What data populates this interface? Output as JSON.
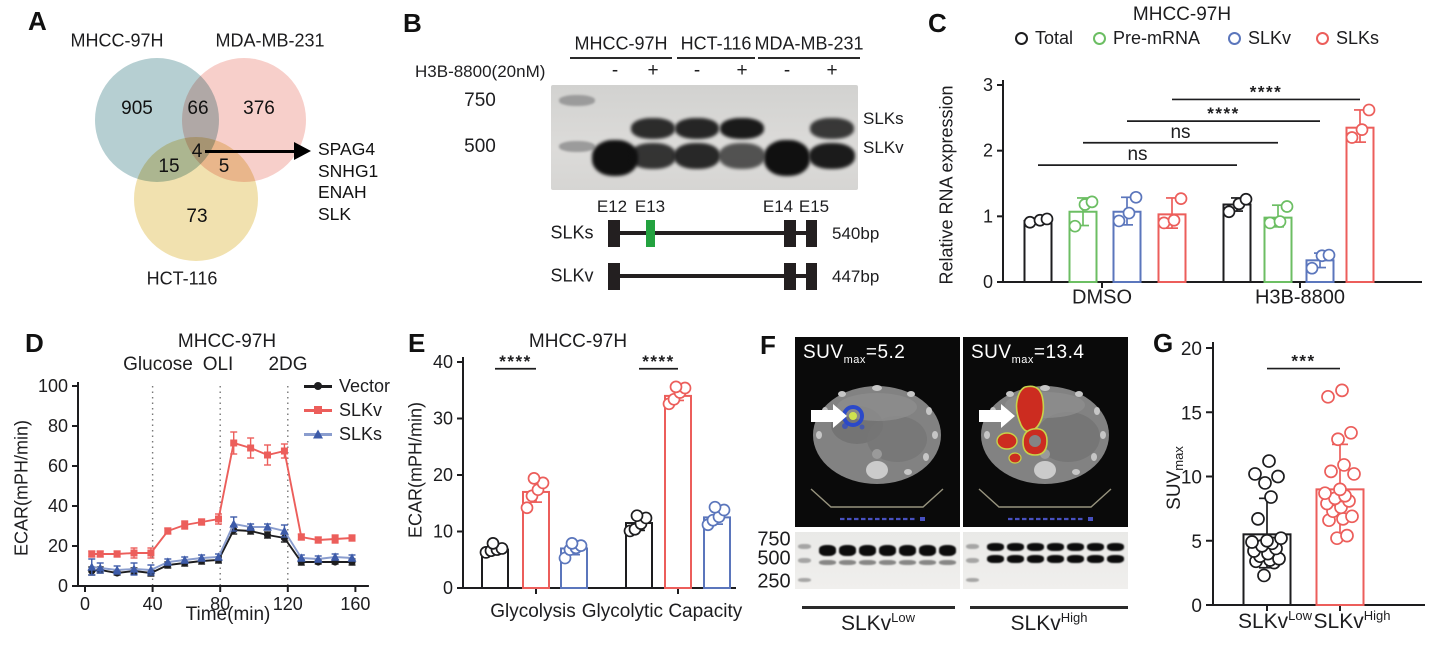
{
  "panels": {
    "A": "A",
    "B": "B",
    "C": "C",
    "D": "D",
    "E": "E",
    "F": "F",
    "G": "G"
  },
  "colors": {
    "black": "#1d1d1f",
    "red": "#EC5E5B",
    "green": "#6CBE63",
    "blue": "#5B76BC",
    "blue_line": "#8A9DCE",
    "blue_marker": "#3D5BA9",
    "venn_teal": "#AECACD",
    "venn_pink": "#F7CAC4",
    "venn_yellow": "#F0DEA6",
    "exon_green": "#23A23F"
  },
  "panelA": {
    "set_labels": [
      "MHCC-97H",
      "MDA-MB-231",
      "HCT-116"
    ],
    "regions": {
      "a_only": "905",
      "ab": "66",
      "b_only": "376",
      "ac": "15",
      "abc": "4",
      "bc": "5",
      "c_only": "73"
    },
    "genes": [
      "SPAG4",
      "SNHG1",
      "ENAH",
      "SLK"
    ]
  },
  "panelB": {
    "cell_lines": [
      "MHCC-97H",
      "HCT-116",
      "MDA-MB-231"
    ],
    "treatment": "H3B-8800(20nM)",
    "ladder": [
      "750",
      "500"
    ],
    "lanes": [
      {
        "sign": "-",
        "slks": 0,
        "slkv": 1
      },
      {
        "sign": "+",
        "slks": 0.85,
        "slkv": 0.7
      },
      {
        "sign": "-",
        "slks": 0.9,
        "slkv": 0.8
      },
      {
        "sign": "+",
        "slks": 1,
        "slkv": 0.45
      },
      {
        "sign": "-",
        "slks": 0,
        "slkv": 1
      },
      {
        "sign": "+",
        "slks": 0.75,
        "slkv": 0.9
      }
    ],
    "band_labels": [
      "SLKs",
      "SLKv"
    ],
    "exon_labels": [
      "E12",
      "E13",
      "E14",
      "E15"
    ],
    "isoforms": [
      {
        "name": "SLKs",
        "size": "540bp",
        "has_e13": true
      },
      {
        "name": "SLKv",
        "size": "447bp",
        "has_e13": false
      }
    ]
  },
  "panelF": {
    "scans": [
      {
        "suv_base": "SUV",
        "suv_sub": "max",
        "suv_eq": "=5.2",
        "hotspot": "small-blue"
      },
      {
        "suv_base": "SUV",
        "suv_sub": "max",
        "suv_eq": "=13.4",
        "hotspot": "large-red"
      }
    ],
    "ladder": [
      "750",
      "500",
      "250"
    ],
    "lanes_per_gel": 7,
    "groups": [
      {
        "base": "SLKv",
        "sup": "Low"
      },
      {
        "base": "SLKv",
        "sup": "High"
      }
    ]
  },
  "chart_data": [
    {
      "id": "C",
      "type": "bar",
      "title": "MHCC-97H",
      "ylabel": "Relative RNA expression",
      "ylim": [
        0,
        3
      ],
      "yticks": [
        0,
        1,
        2,
        3
      ],
      "groups": [
        "DMSO",
        "H3B-8800"
      ],
      "series": [
        {
          "name": "Total",
          "color": "#1d1d1f",
          "values": [
            0.93,
            1.18
          ],
          "errors": [
            [
              0.9,
              0.97
            ],
            [
              1.08,
              1.28
            ]
          ],
          "points": [
            [
              0.91,
              0.94,
              0.96
            ],
            [
              1.07,
              1.19,
              1.26
            ]
          ]
        },
        {
          "name": "Pre-mRNA",
          "color": "#6CBE63",
          "values": [
            1.07,
            0.98
          ],
          "errors": [
            [
              0.86,
              1.28
            ],
            [
              0.84,
              1.17
            ]
          ],
          "points": [
            [
              0.85,
              1.18,
              1.22
            ],
            [
              0.9,
              0.92,
              1.15
            ]
          ]
        },
        {
          "name": "SLKv",
          "color": "#5B76BC",
          "values": [
            1.07,
            0.33
          ],
          "errors": [
            [
              0.87,
              1.29
            ],
            [
              0.22,
              0.44
            ]
          ],
          "points": [
            [
              0.93,
              1.05,
              1.29
            ],
            [
              0.21,
              0.4,
              0.41
            ]
          ]
        },
        {
          "name": "SLKs",
          "color": "#EC5E5B",
          "values": [
            1.03,
            2.35
          ],
          "errors": [
            [
              0.82,
              1.28
            ],
            [
              2.13,
              2.62
            ]
          ],
          "points": [
            [
              0.9,
              0.94,
              1.27
            ],
            [
              2.2,
              2.32,
              2.62
            ]
          ]
        }
      ],
      "significance": [
        {
          "label": "ns",
          "y": 1.78,
          "bars": [
            [
              0,
              0
            ],
            [
              1,
              0
            ]
          ]
        },
        {
          "label": "ns",
          "y": 2.12,
          "bars": [
            [
              0,
              1
            ],
            [
              1,
              1
            ]
          ]
        },
        {
          "label": "****",
          "y": 2.45,
          "bars": [
            [
              0,
              2
            ],
            [
              1,
              2
            ]
          ]
        },
        {
          "label": "****",
          "y": 2.78,
          "bars": [
            [
              0,
              3
            ],
            [
              1,
              3
            ]
          ]
        }
      ]
    },
    {
      "id": "D",
      "type": "line",
      "title": "MHCC-97H",
      "xlabel": "Time(min)",
      "ylabel": "ECAR(mPH/min)",
      "xlim": [
        0,
        168
      ],
      "ylim": [
        0,
        100
      ],
      "xticks": [
        0,
        40,
        80,
        120,
        160
      ],
      "yticks": [
        0,
        20,
        40,
        60,
        80,
        100
      ],
      "injections": [
        {
          "label": "Glucose",
          "x": 40
        },
        {
          "label": "OLI",
          "x": 80
        },
        {
          "label": "2DG",
          "x": 120
        }
      ],
      "x": [
        4,
        9,
        19,
        29,
        39,
        49,
        59,
        69,
        79,
        88,
        98,
        108,
        118,
        128,
        138,
        148,
        158
      ],
      "series": [
        {
          "name": "Vector",
          "marker": "circle",
          "color": "#1d1d1f",
          "line_color": "#1d1d1f",
          "values": [
            7.5,
            8,
            6.5,
            7.5,
            6.5,
            10.5,
            11.5,
            12.5,
            13,
            28,
            27.5,
            25.5,
            24,
            12,
            12,
            12,
            12
          ],
          "errors": [
            2,
            1.5,
            1,
            1.5,
            1.5,
            1.5,
            1.5,
            1.5,
            1.5,
            2,
            1.5,
            1.5,
            2,
            1.5,
            1,
            1,
            1.5
          ]
        },
        {
          "name": "SLKv",
          "marker": "square",
          "color": "#EC5E5B",
          "line_color": "#EC5E5B",
          "values": [
            16,
            16,
            16,
            16.5,
            16.5,
            27.5,
            30.5,
            32,
            33.5,
            71.5,
            69,
            65.5,
            67.5,
            24.5,
            23,
            23.5,
            24
          ],
          "errors": [
            1.5,
            1.5,
            1.5,
            2.5,
            2.5,
            1.5,
            2,
            1.5,
            2.5,
            5.5,
            5,
            5,
            3.5,
            1.5,
            1.5,
            2,
            1.5
          ]
        },
        {
          "name": "SLKs",
          "marker": "triangle",
          "color": "#3D5BA9",
          "line_color": "#8A9DCE",
          "values": [
            9.5,
            9,
            8,
            8.5,
            8,
            12,
            13,
            14,
            14.5,
            31,
            29.5,
            29.5,
            27.5,
            14,
            13.5,
            14.5,
            14
          ],
          "errors": [
            4,
            2.5,
            2,
            3,
            2.5,
            1.5,
            1.5,
            1.5,
            1.5,
            3.5,
            1.5,
            1.5,
            3,
            1.5,
            1.5,
            1.5,
            1.5
          ]
        }
      ]
    },
    {
      "id": "E",
      "type": "bar",
      "title": "MHCC-97H",
      "ylabel": "ECAR(mPH/min)",
      "ylim": [
        0,
        40
      ],
      "yticks": [
        0,
        10,
        20,
        30,
        40
      ],
      "groups": [
        "Glycolysis",
        "Glycolytic Capacity"
      ],
      "series": [
        {
          "name": "Vector",
          "color": "#1d1d1f",
          "values": [
            6.8,
            11.5
          ],
          "errors": [
            [
              6.2,
              7.4
            ],
            [
              10.2,
              12.6
            ]
          ],
          "points": [
            [
              6.3,
              6.6,
              6.8,
              7.0,
              7.9
            ],
            [
              10.1,
              10.4,
              11.4,
              12.4,
              12.8
            ]
          ]
        },
        {
          "name": "SLKv",
          "color": "#EC5E5B",
          "values": [
            17,
            34
          ],
          "errors": [
            [
              15.2,
              18.8
            ],
            [
              33.2,
              34.9
            ]
          ],
          "points": [
            [
              14.2,
              16.3,
              17.4,
              18.6,
              19.4
            ],
            [
              32.6,
              33.4,
              34.6,
              35.4,
              35.6
            ]
          ]
        },
        {
          "name": "SLKs",
          "color": "#5B76BC",
          "values": [
            7,
            12.5
          ],
          "errors": [
            [
              5.9,
              8.1
            ],
            [
              11.3,
              13.7
            ]
          ],
          "points": [
            [
              5.3,
              6.8,
              7.1,
              7.5,
              7.9
            ],
            [
              11.2,
              12.0,
              12.6,
              13.8,
              14.3
            ]
          ]
        }
      ],
      "significance": [
        {
          "label": "****",
          "y": 38.8,
          "bars": [
            [
              0,
              0
            ],
            [
              0,
              1
            ]
          ]
        },
        {
          "label": "****",
          "y": 38.8,
          "bars": [
            [
              1,
              0
            ],
            [
              1,
              1
            ]
          ]
        }
      ]
    },
    {
      "id": "G",
      "type": "scatter-bar",
      "ylabel_base": "SUV",
      "ylabel_sub": "max",
      "ylim": [
        0,
        20
      ],
      "yticks": [
        0,
        5,
        10,
        15,
        20
      ],
      "categories": [
        {
          "base": "SLKv",
          "sup": "Low"
        },
        {
          "base": "SLKv",
          "sup": "High"
        }
      ],
      "series": [
        {
          "color": "#1d1d1f",
          "mean": 5.5,
          "error": [
            2.9,
            8.3
          ],
          "points": [
            2.3,
            3.3,
            3.4,
            3.5,
            3.6,
            3.8,
            4.0,
            4.2,
            4.4,
            4.6,
            4.8,
            4.9,
            5.0,
            5.2,
            6.7,
            8.4,
            9.5,
            10.0,
            10.2,
            11.2
          ]
        },
        {
          "color": "#EC5E5B",
          "mean": 9.0,
          "error": [
            5.5,
            12.5
          ],
          "points": [
            5.2,
            5.4,
            6.6,
            6.7,
            6.9,
            7.3,
            7.6,
            7.9,
            8.1,
            8.3,
            8.5,
            8.7,
            9.0,
            10.2,
            10.4,
            10.9,
            12.9,
            13.4,
            16.2,
            16.7
          ]
        }
      ],
      "significance": [
        {
          "label": "***",
          "y": 18.4
        }
      ]
    }
  ]
}
